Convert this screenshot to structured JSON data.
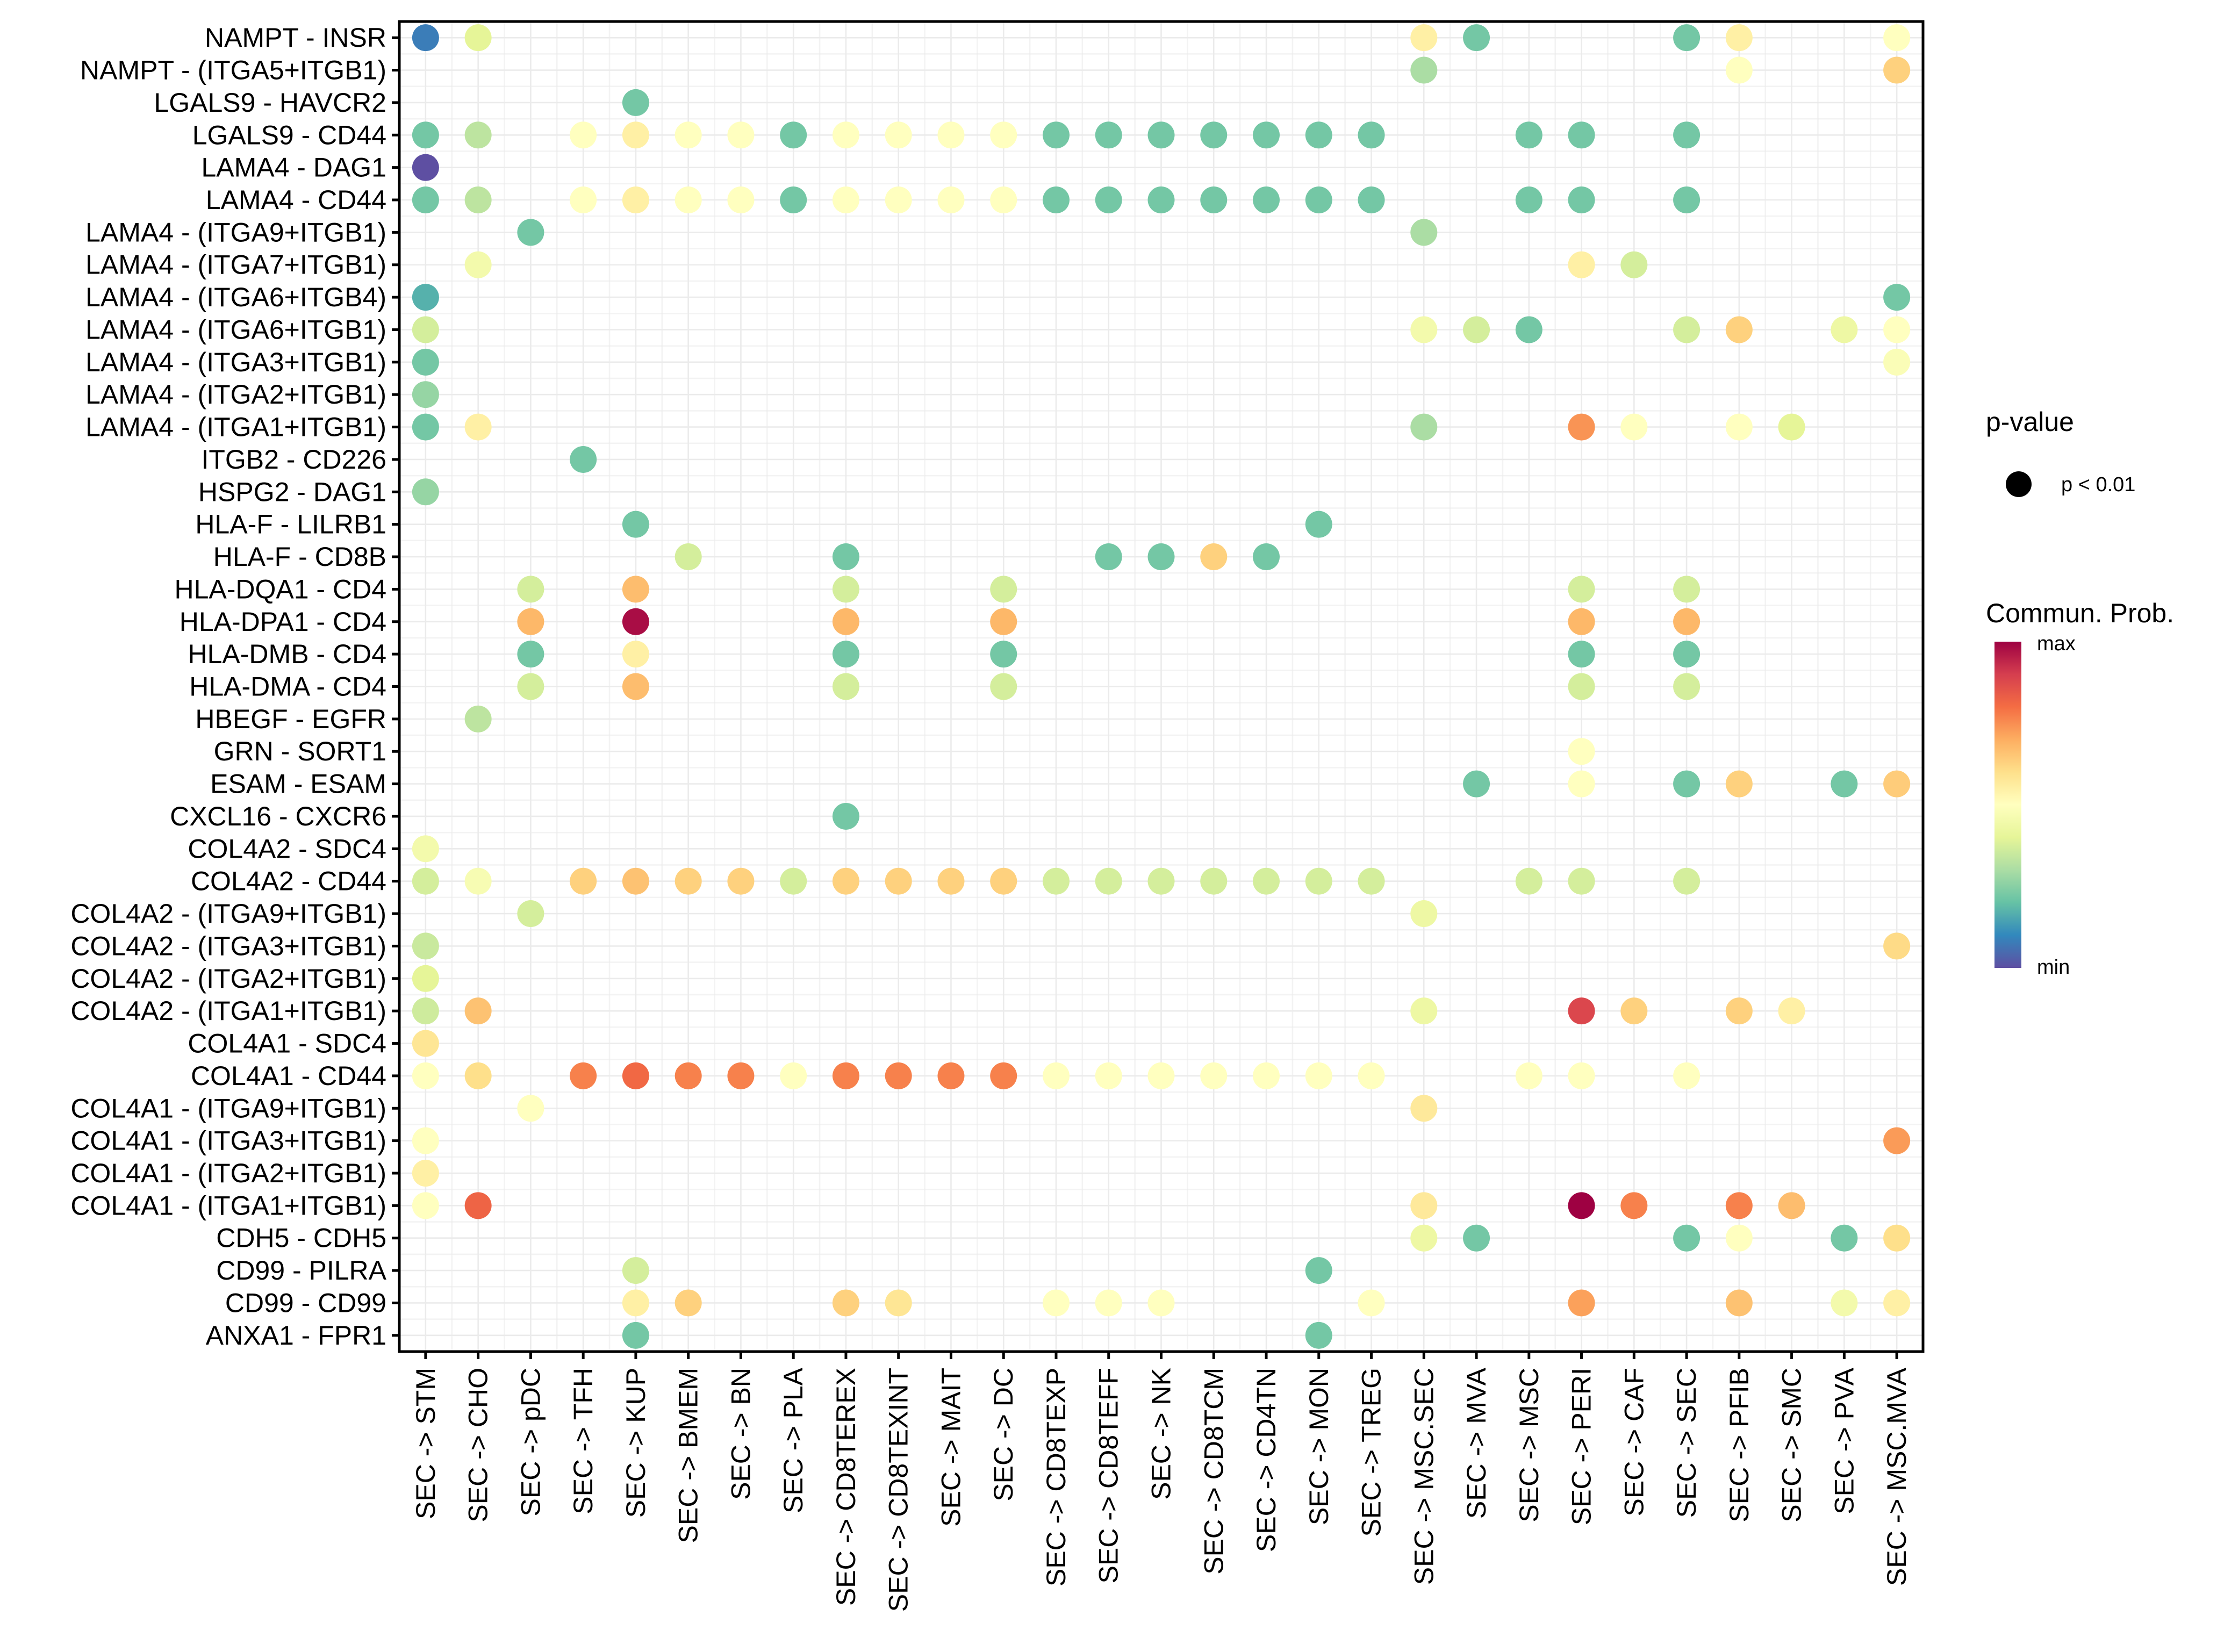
{
  "chart_data": {
    "type": "scatter",
    "subtype": "dot-matrix",
    "title": "",
    "xlabel": "",
    "ylabel": "",
    "grid": true,
    "legend_placement": "right",
    "value_scale": "Commun. Prob. (relative, 0 = min, 1 = max)",
    "x_categories": [
      "SEC -> STM",
      "SEC -> CHO",
      "SEC -> pDC",
      "SEC -> TFH",
      "SEC -> KUP",
      "SEC -> BMEM",
      "SEC -> BN",
      "SEC -> PLA",
      "SEC -> CD8TEREX",
      "SEC -> CD8TEXINT",
      "SEC -> MAIT",
      "SEC -> DC",
      "SEC -> CD8TEXP",
      "SEC -> CD8TEFF",
      "SEC -> NK",
      "SEC -> CD8TCM",
      "SEC -> CD4TN",
      "SEC -> MON",
      "SEC -> TREG",
      "SEC -> MSC.SEC",
      "SEC -> MVA",
      "SEC -> MSC",
      "SEC -> PERI",
      "SEC -> CAF",
      "SEC -> SEC",
      "SEC -> PFIB",
      "SEC -> SMC",
      "SEC -> PVA",
      "SEC -> MSC.MVA"
    ],
    "y_categories": [
      "NAMPT - INSR",
      "NAMPT - (ITGA5+ITGB1)",
      "LGALS9 - HAVCR2",
      "LGALS9 - CD44",
      "LAMA4 - DAG1",
      "LAMA4 - CD44",
      "LAMA4 - (ITGA9+ITGB1)",
      "LAMA4 - (ITGA7+ITGB1)",
      "LAMA4 - (ITGA6+ITGB4)",
      "LAMA4 - (ITGA6+ITGB1)",
      "LAMA4 - (ITGA3+ITGB1)",
      "LAMA4 - (ITGA2+ITGB1)",
      "LAMA4 - (ITGA1+ITGB1)",
      "ITGB2 - CD226",
      "HSPG2 - DAG1",
      "HLA-F - LILRB1",
      "HLA-F - CD8B",
      "HLA-DQA1 - CD4",
      "HLA-DPA1 - CD4",
      "HLA-DMB - CD4",
      "HLA-DMA - CD4",
      "HBEGF - EGFR",
      "GRN - SORT1",
      "ESAM - ESAM",
      "CXCL16 - CXCR6",
      "COL4A2 - SDC4",
      "COL4A2 - CD44",
      "COL4A2 - (ITGA9+ITGB1)",
      "COL4A2 - (ITGA3+ITGB1)",
      "COL4A2 - (ITGA2+ITGB1)",
      "COL4A2 - (ITGA1+ITGB1)",
      "COL4A1 - SDC4",
      "COL4A1 - CD44",
      "COL4A1 - (ITGA9+ITGB1)",
      "COL4A1 - (ITGA3+ITGB1)",
      "COL4A1 - (ITGA2+ITGB1)",
      "COL4A1 - (ITGA1+ITGB1)",
      "CDH5 - CDH5",
      "CD99 - PILRA",
      "CD99 - CD99",
      "ANXA1 - FPR1"
    ],
    "points_format": "[x_index, y_index, commun_prob_relative]",
    "points": [
      [
        0,
        0,
        0.08
      ],
      [
        1,
        0,
        0.4
      ],
      [
        19,
        0,
        0.55
      ],
      [
        20,
        0,
        0.22
      ],
      [
        24,
        0,
        0.22
      ],
      [
        25,
        0,
        0.55
      ],
      [
        28,
        0,
        0.5
      ],
      [
        19,
        1,
        0.3
      ],
      [
        25,
        1,
        0.5
      ],
      [
        28,
        1,
        0.63
      ],
      [
        4,
        2,
        0.22
      ],
      [
        0,
        3,
        0.22
      ],
      [
        1,
        3,
        0.33
      ],
      [
        3,
        3,
        0.5
      ],
      [
        4,
        3,
        0.55
      ],
      [
        5,
        3,
        0.5
      ],
      [
        6,
        3,
        0.5
      ],
      [
        7,
        3,
        0.22
      ],
      [
        8,
        3,
        0.5
      ],
      [
        9,
        3,
        0.5
      ],
      [
        10,
        3,
        0.5
      ],
      [
        11,
        3,
        0.5
      ],
      [
        12,
        3,
        0.22
      ],
      [
        13,
        3,
        0.22
      ],
      [
        14,
        3,
        0.22
      ],
      [
        15,
        3,
        0.22
      ],
      [
        16,
        3,
        0.22
      ],
      [
        17,
        3,
        0.22
      ],
      [
        18,
        3,
        0.22
      ],
      [
        21,
        3,
        0.22
      ],
      [
        22,
        3,
        0.22
      ],
      [
        24,
        3,
        0.22
      ],
      [
        0,
        4,
        0.0
      ],
      [
        0,
        5,
        0.22
      ],
      [
        1,
        5,
        0.33
      ],
      [
        3,
        5,
        0.5
      ],
      [
        4,
        5,
        0.55
      ],
      [
        5,
        5,
        0.5
      ],
      [
        6,
        5,
        0.5
      ],
      [
        7,
        5,
        0.22
      ],
      [
        8,
        5,
        0.5
      ],
      [
        9,
        5,
        0.5
      ],
      [
        10,
        5,
        0.5
      ],
      [
        11,
        5,
        0.5
      ],
      [
        12,
        5,
        0.22
      ],
      [
        13,
        5,
        0.22
      ],
      [
        14,
        5,
        0.22
      ],
      [
        15,
        5,
        0.22
      ],
      [
        16,
        5,
        0.22
      ],
      [
        17,
        5,
        0.22
      ],
      [
        18,
        5,
        0.22
      ],
      [
        21,
        5,
        0.22
      ],
      [
        22,
        5,
        0.22
      ],
      [
        24,
        5,
        0.22
      ],
      [
        2,
        6,
        0.22
      ],
      [
        19,
        6,
        0.3
      ],
      [
        1,
        7,
        0.45
      ],
      [
        22,
        7,
        0.55
      ],
      [
        23,
        7,
        0.37
      ],
      [
        0,
        8,
        0.17
      ],
      [
        28,
        8,
        0.22
      ],
      [
        0,
        9,
        0.37
      ],
      [
        19,
        9,
        0.45
      ],
      [
        20,
        9,
        0.37
      ],
      [
        21,
        9,
        0.22
      ],
      [
        24,
        9,
        0.37
      ],
      [
        25,
        9,
        0.63
      ],
      [
        27,
        9,
        0.43
      ],
      [
        28,
        9,
        0.5
      ],
      [
        0,
        10,
        0.22
      ],
      [
        28,
        10,
        0.48
      ],
      [
        0,
        11,
        0.27
      ],
      [
        0,
        12,
        0.22
      ],
      [
        1,
        12,
        0.55
      ],
      [
        19,
        12,
        0.3
      ],
      [
        22,
        12,
        0.74
      ],
      [
        23,
        12,
        0.5
      ],
      [
        25,
        12,
        0.5
      ],
      [
        26,
        12,
        0.4
      ],
      [
        3,
        13,
        0.22
      ],
      [
        0,
        14,
        0.27
      ],
      [
        4,
        15,
        0.22
      ],
      [
        17,
        15,
        0.22
      ],
      [
        5,
        16,
        0.37
      ],
      [
        8,
        16,
        0.22
      ],
      [
        13,
        16,
        0.22
      ],
      [
        14,
        16,
        0.22
      ],
      [
        15,
        16,
        0.63
      ],
      [
        16,
        16,
        0.22
      ],
      [
        2,
        17,
        0.37
      ],
      [
        4,
        17,
        0.67
      ],
      [
        8,
        17,
        0.37
      ],
      [
        11,
        17,
        0.37
      ],
      [
        22,
        17,
        0.37
      ],
      [
        24,
        17,
        0.37
      ],
      [
        2,
        18,
        0.68
      ],
      [
        4,
        18,
        0.98
      ],
      [
        8,
        18,
        0.68
      ],
      [
        11,
        18,
        0.68
      ],
      [
        22,
        18,
        0.68
      ],
      [
        24,
        18,
        0.68
      ],
      [
        2,
        19,
        0.22
      ],
      [
        4,
        19,
        0.55
      ],
      [
        8,
        19,
        0.22
      ],
      [
        11,
        19,
        0.22
      ],
      [
        22,
        19,
        0.22
      ],
      [
        24,
        19,
        0.22
      ],
      [
        2,
        20,
        0.37
      ],
      [
        4,
        20,
        0.67
      ],
      [
        8,
        20,
        0.37
      ],
      [
        11,
        20,
        0.37
      ],
      [
        22,
        20,
        0.37
      ],
      [
        24,
        20,
        0.37
      ],
      [
        1,
        21,
        0.33
      ],
      [
        22,
        22,
        0.5
      ],
      [
        20,
        23,
        0.22
      ],
      [
        22,
        23,
        0.5
      ],
      [
        24,
        23,
        0.22
      ],
      [
        25,
        23,
        0.63
      ],
      [
        27,
        23,
        0.22
      ],
      [
        28,
        23,
        0.64
      ],
      [
        8,
        24,
        0.22
      ],
      [
        0,
        25,
        0.45
      ],
      [
        0,
        26,
        0.37
      ],
      [
        1,
        26,
        0.47
      ],
      [
        3,
        26,
        0.63
      ],
      [
        4,
        26,
        0.66
      ],
      [
        5,
        26,
        0.63
      ],
      [
        6,
        26,
        0.63
      ],
      [
        7,
        26,
        0.37
      ],
      [
        8,
        26,
        0.63
      ],
      [
        9,
        26,
        0.63
      ],
      [
        10,
        26,
        0.63
      ],
      [
        11,
        26,
        0.63
      ],
      [
        12,
        26,
        0.37
      ],
      [
        13,
        26,
        0.37
      ],
      [
        14,
        26,
        0.37
      ],
      [
        15,
        26,
        0.37
      ],
      [
        16,
        26,
        0.37
      ],
      [
        17,
        26,
        0.37
      ],
      [
        18,
        26,
        0.37
      ],
      [
        21,
        26,
        0.37
      ],
      [
        22,
        26,
        0.37
      ],
      [
        24,
        26,
        0.37
      ],
      [
        2,
        27,
        0.37
      ],
      [
        19,
        27,
        0.43
      ],
      [
        0,
        28,
        0.35
      ],
      [
        28,
        28,
        0.61
      ],
      [
        0,
        29,
        0.4
      ],
      [
        0,
        30,
        0.36
      ],
      [
        1,
        30,
        0.66
      ],
      [
        19,
        30,
        0.43
      ],
      [
        22,
        30,
        0.88
      ],
      [
        23,
        30,
        0.63
      ],
      [
        25,
        30,
        0.63
      ],
      [
        26,
        30,
        0.55
      ],
      [
        0,
        31,
        0.58
      ],
      [
        0,
        32,
        0.5
      ],
      [
        1,
        32,
        0.6
      ],
      [
        3,
        32,
        0.77
      ],
      [
        4,
        32,
        0.81
      ],
      [
        5,
        32,
        0.77
      ],
      [
        6,
        32,
        0.77
      ],
      [
        7,
        32,
        0.5
      ],
      [
        8,
        32,
        0.77
      ],
      [
        9,
        32,
        0.77
      ],
      [
        10,
        32,
        0.77
      ],
      [
        11,
        32,
        0.77
      ],
      [
        12,
        32,
        0.5
      ],
      [
        13,
        32,
        0.5
      ],
      [
        14,
        32,
        0.5
      ],
      [
        15,
        32,
        0.5
      ],
      [
        16,
        32,
        0.5
      ],
      [
        17,
        32,
        0.5
      ],
      [
        18,
        32,
        0.5
      ],
      [
        21,
        32,
        0.5
      ],
      [
        22,
        32,
        0.5
      ],
      [
        24,
        32,
        0.5
      ],
      [
        2,
        33,
        0.5
      ],
      [
        19,
        33,
        0.57
      ],
      [
        0,
        34,
        0.5
      ],
      [
        28,
        34,
        0.73
      ],
      [
        0,
        35,
        0.55
      ],
      [
        0,
        36,
        0.5
      ],
      [
        1,
        36,
        0.82
      ],
      [
        19,
        36,
        0.57
      ],
      [
        22,
        36,
        1.0
      ],
      [
        23,
        36,
        0.77
      ],
      [
        25,
        36,
        0.77
      ],
      [
        26,
        36,
        0.67
      ],
      [
        19,
        37,
        0.43
      ],
      [
        20,
        37,
        0.22
      ],
      [
        24,
        37,
        0.22
      ],
      [
        25,
        37,
        0.5
      ],
      [
        27,
        37,
        0.22
      ],
      [
        28,
        37,
        0.6
      ],
      [
        4,
        38,
        0.37
      ],
      [
        17,
        38,
        0.22
      ],
      [
        4,
        39,
        0.55
      ],
      [
        5,
        39,
        0.63
      ],
      [
        8,
        39,
        0.63
      ],
      [
        9,
        39,
        0.58
      ],
      [
        12,
        39,
        0.5
      ],
      [
        13,
        39,
        0.5
      ],
      [
        14,
        39,
        0.5
      ],
      [
        18,
        39,
        0.5
      ],
      [
        22,
        39,
        0.72
      ],
      [
        25,
        39,
        0.66
      ],
      [
        27,
        39,
        0.45
      ],
      [
        28,
        39,
        0.55
      ],
      [
        4,
        40,
        0.22
      ],
      [
        17,
        40,
        0.22
      ]
    ]
  },
  "legend": {
    "pvalue": {
      "title": "p-value",
      "items": [
        {
          "label": "p < 0.01",
          "color": "#000000"
        }
      ]
    },
    "colorbar": {
      "title": "Commun. Prob.",
      "max_label": "max",
      "min_label": "min",
      "palette": [
        "#5E4FA2",
        "#3288BD",
        "#66C2A5",
        "#ABDDA4",
        "#E6F598",
        "#FFFFBF",
        "#FEE08B",
        "#FDAE61",
        "#F46D43",
        "#D53E4F",
        "#9E0142"
      ]
    }
  }
}
